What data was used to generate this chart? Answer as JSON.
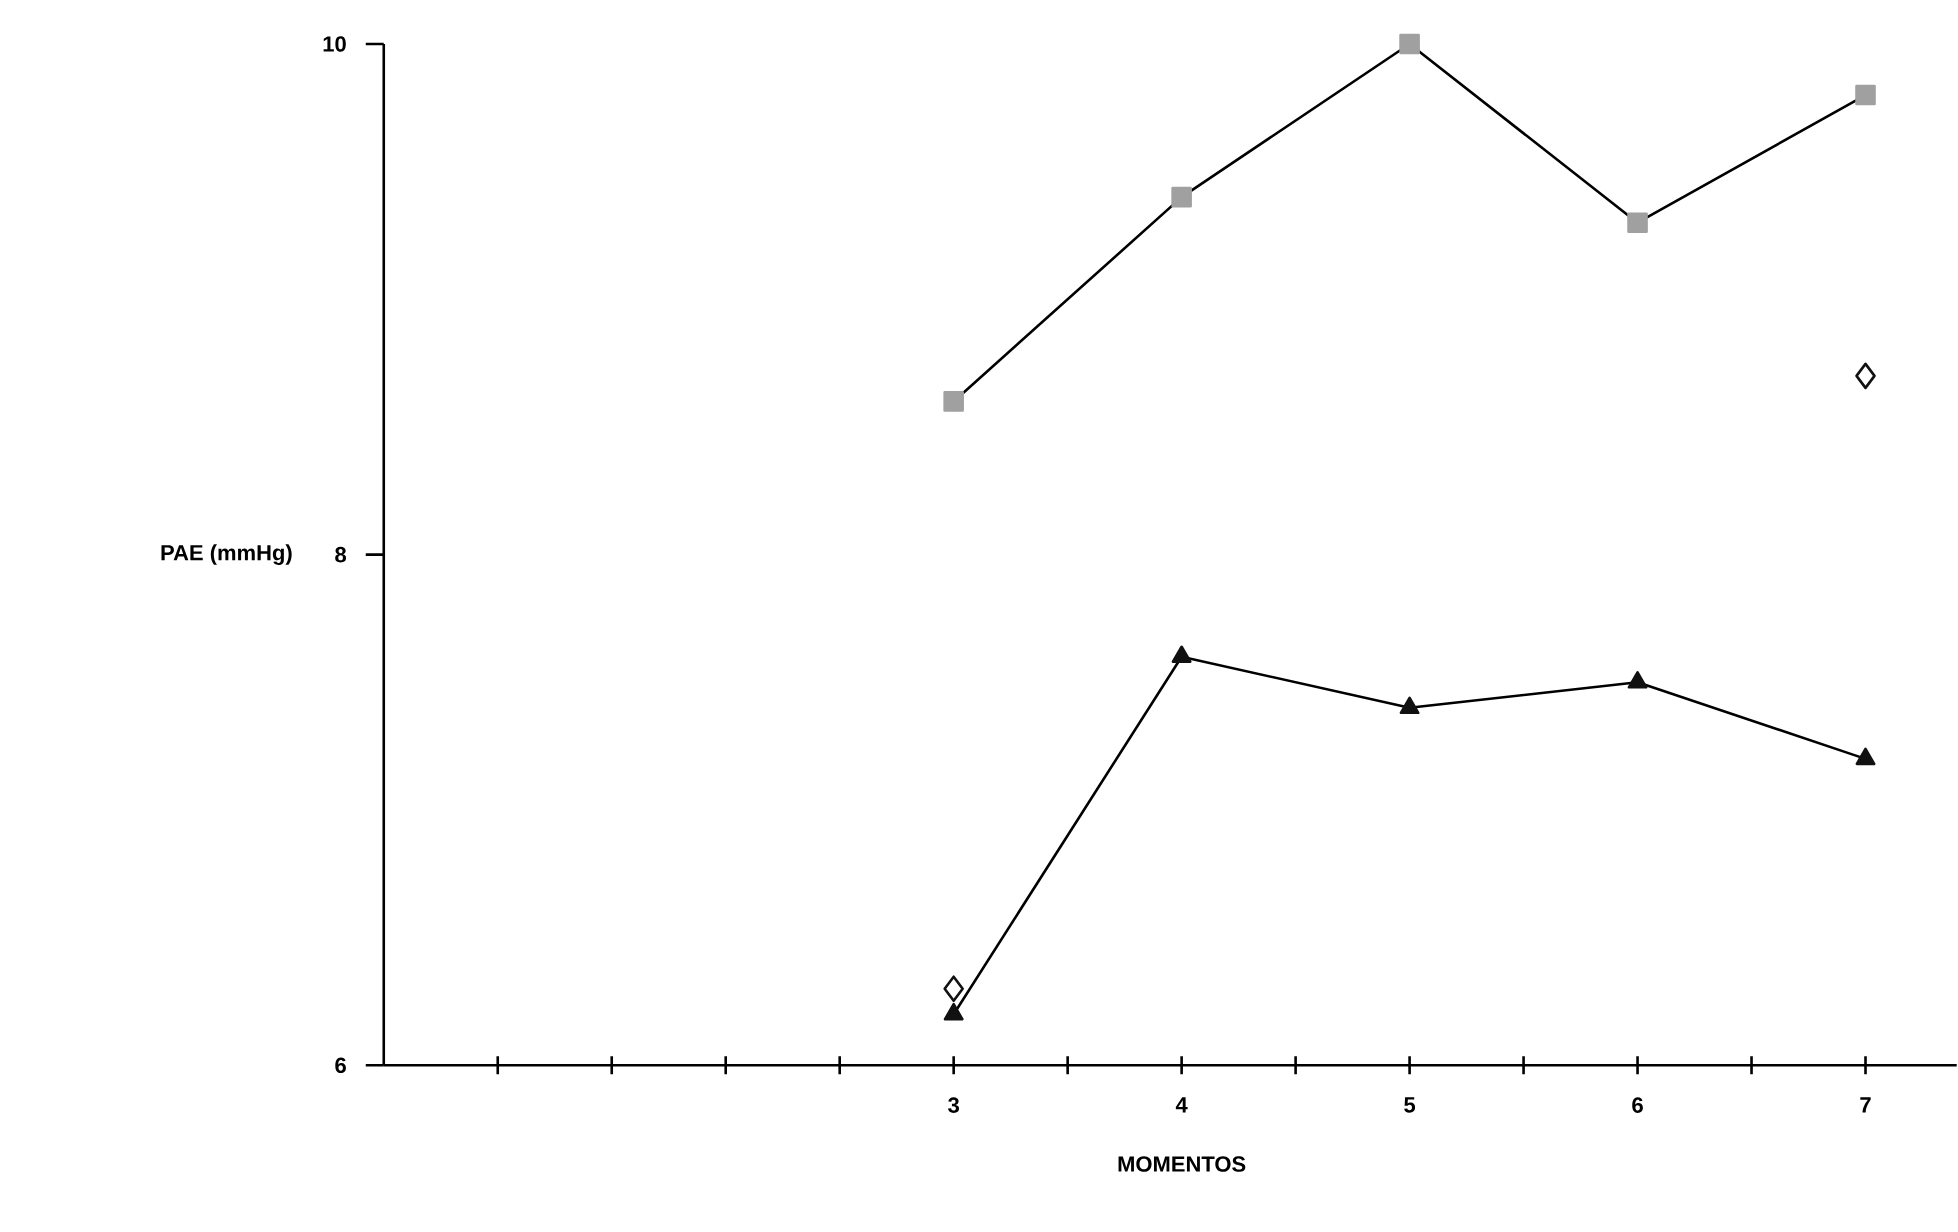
{
  "chart_data": {
    "type": "line",
    "xlabel": "MOMENTOS",
    "ylabel": "PAE (mmHg)",
    "xlim": [
      0.5,
      7.4
    ],
    "xticks": [
      {
        "value": 1,
        "label": null
      },
      {
        "value": 1.5,
        "label": null
      },
      {
        "value": 2,
        "label": null
      },
      {
        "value": 2.5,
        "label": null
      },
      3,
      {
        "value": 3.5,
        "label": null
      },
      4,
      {
        "value": 4.5,
        "label": null
      },
      5,
      {
        "value": 5.5,
        "label": null
      },
      6,
      {
        "value": 6.5,
        "label": null
      },
      7
    ],
    "ylim": [
      6,
      10
    ],
    "yticks": [
      6,
      8,
      10
    ],
    "series": [
      {
        "marker": "square",
        "color": "#a0a0a0",
        "x": [
          3,
          4,
          5,
          6,
          7
        ],
        "values": [
          8.6,
          9.4,
          10.0,
          9.3,
          9.8
        ]
      },
      {
        "marker": "triangle",
        "color": "#111111",
        "x": [
          3,
          4,
          5,
          6,
          7
        ],
        "values": [
          6.2,
          7.6,
          7.4,
          7.5,
          7.2
        ]
      },
      {
        "type": "scatter",
        "marker": "diamond",
        "color": "#111111",
        "x": [
          3,
          7
        ],
        "values": [
          6.3,
          8.7
        ]
      }
    ]
  }
}
